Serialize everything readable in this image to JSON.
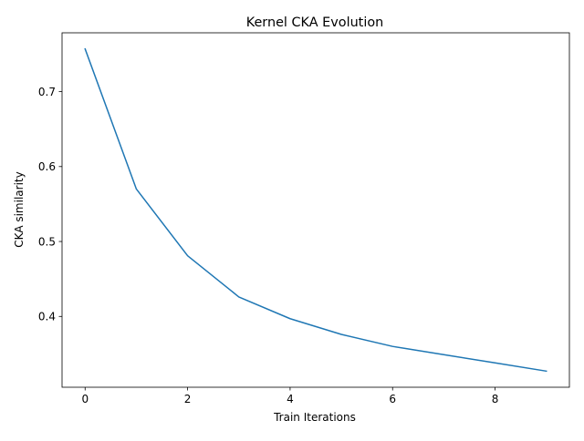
{
  "chart_data": {
    "type": "line",
    "title": "Kernel CKA Evolution",
    "xlabel": "Train Iterations",
    "ylabel": "CKA similarity",
    "x": [
      0,
      1,
      2,
      3,
      4,
      5,
      6,
      7,
      8,
      9
    ],
    "series": [
      {
        "values": [
          0.757,
          0.57,
          0.481,
          0.426,
          0.397,
          0.376,
          0.36,
          0.349,
          0.338,
          0.327
        ],
        "color": "#1f77b4"
      }
    ],
    "xlim": [
      -0.45,
      9.45
    ],
    "ylim": [
      0.3055,
      0.7785
    ],
    "xticks": [
      0,
      2,
      4,
      6,
      8
    ],
    "xtick_labels": [
      "0",
      "2",
      "4",
      "6",
      "8"
    ],
    "yticks": [
      0.4,
      0.5,
      0.6,
      0.7
    ],
    "ytick_labels": [
      "0.4",
      "0.5",
      "0.6",
      "0.7"
    ],
    "grid": false,
    "legend": "none"
  }
}
